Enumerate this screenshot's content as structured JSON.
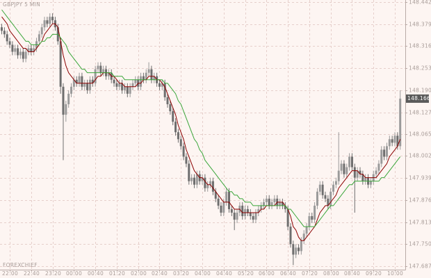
{
  "chart_data": {
    "type": "candlestick",
    "title": "GBPJPY 5 MIN",
    "watermark": "FOREXCHIEF",
    "categories": [
      null,
      null,
      null,
      "22:00",
      null,
      null,
      null,
      null,
      null,
      null,
      null,
      "22:40",
      null,
      null,
      null,
      null,
      null,
      null,
      null,
      "23:20",
      null,
      null,
      null,
      null,
      null,
      null,
      null,
      "00:00",
      null,
      null,
      null,
      null,
      null,
      null,
      null,
      "00:40",
      null,
      null,
      null,
      null,
      null,
      null,
      null,
      "01:20",
      null,
      null,
      null,
      null,
      null,
      null,
      null,
      "02:00",
      null,
      null,
      null,
      null,
      null,
      null,
      null,
      "02:40",
      null,
      null,
      null,
      null,
      null,
      null,
      null,
      "03:20",
      null,
      null,
      null,
      null,
      null,
      null,
      null,
      "04:00",
      null,
      null,
      null,
      null,
      null,
      null,
      null,
      "04:40",
      null,
      null,
      null,
      null,
      null,
      null,
      null,
      "05:20",
      null,
      null,
      null,
      null,
      null,
      null,
      null,
      "06:00",
      null,
      null,
      null,
      null,
      null,
      null,
      null,
      "06:40",
      null,
      null,
      null,
      null,
      null,
      null,
      null,
      "07:20",
      null,
      null,
      null,
      null,
      null,
      null,
      null,
      "08:00",
      null,
      null,
      null,
      null,
      null,
      null,
      null,
      "08:40",
      null,
      null,
      null,
      null,
      null,
      null,
      null,
      "09:20",
      null,
      null,
      null,
      null,
      null,
      null,
      null,
      "10:00",
      null,
      null
    ],
    "open": [
      148.37,
      148.36,
      148.35,
      148.33,
      148.32,
      148.3,
      148.31,
      148.29,
      148.3,
      148.28,
      148.3,
      148.31,
      148.3,
      148.31,
      148.33,
      148.35,
      148.37,
      148.39,
      148.38,
      148.4,
      148.39,
      148.37,
      148.33,
      148.2,
      148.12,
      148.15,
      148.18,
      148.2,
      148.22,
      148.21,
      148.23,
      148.2,
      148.21,
      148.19,
      148.22,
      148.21,
      148.25,
      148.26,
      148.24,
      148.25,
      148.23,
      148.24,
      148.22,
      148.21,
      148.2,
      148.21,
      148.19,
      148.2,
      148.18,
      148.2,
      148.21,
      148.22,
      148.2,
      148.23,
      148.22,
      148.24,
      148.25,
      148.22,
      148.23,
      148.21,
      148.2,
      148.21,
      148.17,
      148.15,
      148.13,
      148.1,
      148.07,
      148.05,
      148.03,
      148.0,
      147.98,
      147.93,
      147.94,
      147.92,
      147.95,
      147.93,
      147.94,
      147.91,
      147.92,
      147.93,
      147.9,
      147.88,
      147.86,
      147.84,
      147.87,
      147.9,
      147.85,
      147.84,
      147.82,
      147.84,
      147.86,
      147.83,
      147.85,
      147.84,
      147.83,
      147.82,
      147.84,
      147.85,
      147.86,
      147.87,
      147.88,
      147.86,
      147.87,
      147.88,
      147.86,
      147.87,
      147.86,
      147.85,
      147.8,
      147.75,
      147.72,
      147.74,
      147.73,
      147.76,
      147.78,
      147.8,
      147.83,
      147.82,
      147.86,
      147.9,
      147.92,
      147.89,
      147.88,
      147.86,
      147.9,
      147.92,
      147.93,
      147.96,
      147.98,
      147.95,
      147.97,
      148.0,
      147.97,
      147.94,
      147.96,
      147.95,
      147.93,
      147.94,
      147.92,
      147.93,
      147.95,
      147.96,
      147.98,
      148.02,
      148.0,
      148.03,
      148.05,
      148.04,
      148.06,
      148.03
    ],
    "high": [
      148.38,
      148.37,
      148.36,
      148.34,
      148.33,
      148.32,
      148.32,
      148.31,
      148.31,
      148.31,
      148.32,
      148.32,
      148.32,
      148.34,
      148.36,
      148.38,
      148.4,
      148.4,
      148.41,
      148.41,
      148.4,
      148.38,
      148.34,
      148.21,
      148.16,
      148.19,
      148.21,
      148.23,
      148.23,
      148.24,
      148.24,
      148.22,
      148.22,
      148.23,
      148.23,
      148.26,
      148.27,
      148.27,
      148.26,
      148.26,
      148.25,
      148.25,
      148.23,
      148.22,
      148.22,
      148.22,
      148.21,
      148.21,
      148.21,
      148.22,
      148.23,
      148.23,
      148.24,
      148.24,
      148.25,
      148.27,
      148.26,
      148.24,
      148.24,
      148.22,
      148.22,
      148.22,
      148.18,
      148.16,
      148.14,
      148.11,
      148.08,
      148.06,
      148.04,
      148.01,
      147.99,
      147.95,
      147.95,
      147.96,
      147.96,
      147.95,
      147.95,
      147.93,
      147.94,
      147.94,
      147.91,
      147.89,
      147.87,
      147.88,
      147.91,
      147.91,
      147.86,
      147.85,
      147.85,
      147.87,
      147.87,
      147.86,
      147.86,
      147.85,
      147.84,
      147.85,
      147.86,
      147.87,
      147.88,
      147.89,
      147.89,
      147.88,
      147.89,
      147.89,
      147.88,
      147.88,
      147.87,
      147.86,
      147.81,
      147.76,
      147.75,
      147.75,
      147.77,
      147.79,
      147.81,
      147.84,
      147.84,
      147.87,
      147.91,
      147.93,
      147.93,
      147.9,
      147.89,
      147.91,
      147.93,
      147.94,
      148.07,
      147.99,
      147.99,
      147.98,
      148.01,
      148.01,
      147.98,
      147.97,
      147.97,
      147.96,
      147.95,
      147.95,
      147.94,
      147.96,
      147.97,
      147.99,
      148.03,
      148.03,
      148.04,
      148.06,
      148.06,
      148.07,
      148.07,
      148.19
    ],
    "low": [
      148.35,
      148.34,
      148.32,
      148.31,
      148.29,
      148.29,
      148.28,
      148.28,
      148.27,
      148.27,
      148.29,
      148.29,
      148.29,
      148.3,
      148.32,
      148.34,
      148.36,
      148.37,
      148.37,
      148.38,
      148.36,
      148.32,
      148.18,
      147.99,
      148.1,
      148.14,
      148.17,
      148.19,
      148.2,
      148.2,
      148.19,
      148.19,
      148.18,
      148.18,
      148.2,
      148.2,
      148.24,
      148.23,
      148.23,
      148.22,
      148.22,
      148.21,
      148.2,
      148.19,
      148.19,
      148.18,
      148.18,
      148.17,
      148.17,
      148.19,
      148.2,
      148.19,
      148.19,
      148.21,
      148.21,
      148.23,
      148.21,
      148.21,
      148.2,
      148.19,
      148.19,
      148.16,
      148.14,
      148.12,
      148.09,
      148.06,
      148.04,
      148.02,
      147.99,
      147.97,
      147.92,
      147.92,
      147.91,
      147.91,
      147.92,
      147.92,
      147.9,
      147.9,
      147.91,
      147.89,
      147.87,
      147.85,
      147.83,
      147.83,
      147.86,
      147.84,
      147.83,
      147.79,
      147.81,
      147.83,
      147.82,
      147.82,
      147.83,
      147.82,
      147.81,
      147.81,
      147.83,
      147.84,
      147.85,
      147.86,
      147.85,
      147.85,
      147.86,
      147.85,
      147.85,
      147.85,
      147.84,
      147.79,
      147.74,
      147.69,
      147.71,
      147.72,
      147.72,
      147.75,
      147.77,
      147.79,
      147.81,
      147.81,
      147.85,
      147.89,
      147.88,
      147.87,
      147.85,
      147.85,
      147.89,
      147.91,
      147.92,
      147.95,
      147.94,
      147.94,
      147.96,
      147.96,
      147.84,
      147.93,
      147.94,
      147.92,
      147.92,
      147.91,
      147.91,
      147.92,
      147.94,
      147.95,
      147.97,
      147.99,
      147.99,
      148.02,
      148.03,
      148.03,
      148.02,
      148.02
    ],
    "close": [
      148.36,
      148.35,
      148.33,
      148.32,
      148.3,
      148.31,
      148.29,
      148.3,
      148.28,
      148.3,
      148.31,
      148.3,
      148.31,
      148.33,
      148.35,
      148.37,
      148.39,
      148.38,
      148.4,
      148.39,
      148.37,
      148.33,
      148.2,
      148.12,
      148.15,
      148.18,
      148.2,
      148.22,
      148.21,
      148.23,
      148.2,
      148.21,
      148.19,
      148.22,
      148.21,
      148.25,
      148.26,
      148.24,
      148.25,
      148.23,
      148.24,
      148.22,
      148.21,
      148.2,
      148.21,
      148.19,
      148.2,
      148.18,
      148.2,
      148.21,
      148.22,
      148.2,
      148.23,
      148.22,
      148.24,
      148.25,
      148.22,
      148.23,
      148.21,
      148.2,
      148.21,
      148.17,
      148.15,
      148.13,
      148.1,
      148.07,
      148.05,
      148.03,
      148.0,
      147.98,
      147.93,
      147.94,
      147.92,
      147.95,
      147.93,
      147.94,
      147.91,
      147.92,
      147.93,
      147.9,
      147.88,
      147.86,
      147.84,
      147.87,
      147.9,
      147.85,
      147.84,
      147.82,
      147.84,
      147.86,
      147.83,
      147.85,
      147.84,
      147.83,
      147.82,
      147.84,
      147.85,
      147.86,
      147.87,
      147.88,
      147.86,
      147.87,
      147.88,
      147.86,
      147.87,
      147.86,
      147.85,
      147.8,
      147.75,
      147.72,
      147.74,
      147.73,
      147.76,
      147.78,
      147.8,
      147.83,
      147.82,
      147.86,
      147.9,
      147.92,
      147.89,
      147.88,
      147.86,
      147.9,
      147.92,
      147.93,
      147.96,
      147.98,
      147.95,
      147.97,
      148.0,
      147.97,
      147.94,
      147.96,
      147.95,
      147.93,
      147.94,
      147.92,
      147.93,
      147.95,
      147.96,
      147.98,
      148.02,
      148.0,
      148.03,
      148.05,
      148.04,
      148.06,
      148.03,
      148.166
    ],
    "up_color": "#9a9a9a",
    "down_color": "#6e6e6e",
    "moving_averages": [
      {
        "color": "#8b0000",
        "values": [
          148.4,
          148.39,
          148.38,
          148.36,
          148.35,
          148.34,
          148.33,
          148.32,
          148.31,
          148.31,
          148.3,
          148.3,
          148.3,
          148.31,
          148.32,
          148.33,
          148.35,
          148.36,
          148.37,
          148.38,
          148.38,
          148.37,
          148.33,
          148.29,
          148.26,
          148.24,
          148.23,
          148.22,
          148.21,
          148.21,
          148.21,
          148.21,
          148.21,
          148.21,
          148.21,
          148.22,
          148.23,
          148.23,
          148.24,
          148.24,
          148.24,
          148.23,
          148.23,
          148.22,
          148.21,
          148.21,
          148.2,
          148.2,
          148.2,
          148.2,
          148.2,
          148.21,
          148.21,
          148.22,
          148.22,
          148.23,
          148.23,
          148.23,
          148.22,
          148.22,
          148.21,
          148.2,
          148.18,
          148.16,
          148.14,
          148.12,
          148.09,
          148.07,
          148.05,
          148.02,
          148.0,
          147.98,
          147.96,
          147.95,
          147.94,
          147.94,
          147.93,
          147.92,
          147.92,
          147.91,
          147.9,
          147.89,
          147.88,
          147.87,
          147.87,
          147.87,
          147.86,
          147.85,
          147.85,
          147.85,
          147.84,
          147.84,
          147.84,
          147.84,
          147.84,
          147.84,
          147.84,
          147.85,
          147.85,
          147.86,
          147.86,
          147.86,
          147.86,
          147.87,
          147.87,
          147.87,
          147.86,
          147.85,
          147.83,
          147.8,
          147.79,
          147.77,
          147.76,
          147.76,
          147.77,
          147.78,
          147.79,
          147.8,
          147.82,
          147.84,
          147.85,
          147.86,
          147.86,
          147.87,
          147.88,
          147.89,
          147.91,
          147.92,
          147.93,
          147.94,
          147.95,
          147.96,
          147.96,
          147.96,
          147.95,
          147.95,
          147.94,
          147.94,
          147.94,
          147.94,
          147.94,
          147.95,
          147.96,
          147.97,
          147.98,
          148.0,
          148.01,
          148.02,
          148.03,
          148.05
        ]
      },
      {
        "color": "#3aa63a",
        "values": [
          148.42,
          148.41,
          148.4,
          148.39,
          148.38,
          148.37,
          148.36,
          148.35,
          148.34,
          148.33,
          148.33,
          148.32,
          148.32,
          148.32,
          148.32,
          148.33,
          148.33,
          148.34,
          148.34,
          148.35,
          148.35,
          148.35,
          148.34,
          148.33,
          148.32,
          148.3,
          148.29,
          148.28,
          148.27,
          148.26,
          148.25,
          148.25,
          148.24,
          148.24,
          148.24,
          148.24,
          148.24,
          148.24,
          148.24,
          148.24,
          148.24,
          148.24,
          148.23,
          148.23,
          148.23,
          148.23,
          148.22,
          148.22,
          148.22,
          148.22,
          148.22,
          148.22,
          148.22,
          148.22,
          148.22,
          148.22,
          148.22,
          148.22,
          148.22,
          148.22,
          148.22,
          148.21,
          148.21,
          148.2,
          148.19,
          148.18,
          148.16,
          148.15,
          148.13,
          148.11,
          148.09,
          148.07,
          148.05,
          148.04,
          148.02,
          148.01,
          147.99,
          147.98,
          147.97,
          147.96,
          147.95,
          147.94,
          147.93,
          147.92,
          147.91,
          147.9,
          147.9,
          147.89,
          147.89,
          147.88,
          147.88,
          147.87,
          147.87,
          147.87,
          147.86,
          147.86,
          147.86,
          147.86,
          147.86,
          147.86,
          147.86,
          147.86,
          147.86,
          147.86,
          147.86,
          147.86,
          147.86,
          147.85,
          147.85,
          147.84,
          147.83,
          147.82,
          147.81,
          147.8,
          147.8,
          147.8,
          147.8,
          147.8,
          147.81,
          147.82,
          147.83,
          147.84,
          147.85,
          147.86,
          147.86,
          147.87,
          147.88,
          147.89,
          147.9,
          147.91,
          147.92,
          147.92,
          147.93,
          147.93,
          147.93,
          147.93,
          147.93,
          147.93,
          147.93,
          147.93,
          147.93,
          147.93,
          147.94,
          147.94,
          147.95,
          147.96,
          147.97,
          147.98,
          147.99,
          148.0
        ]
      }
    ],
    "ylim": [
      147.677,
      148.448
    ],
    "yticks": [
      147.687,
      {
        "value": 147.75,
        "label": "147.750"
      },
      147.813,
      147.876,
      147.939,
      148.002,
      148.065,
      148.127,
      {
        "value": 148.19,
        "label": "148.190"
      },
      148.253,
      148.316,
      148.379,
      148.442
    ],
    "grid": true
  }
}
